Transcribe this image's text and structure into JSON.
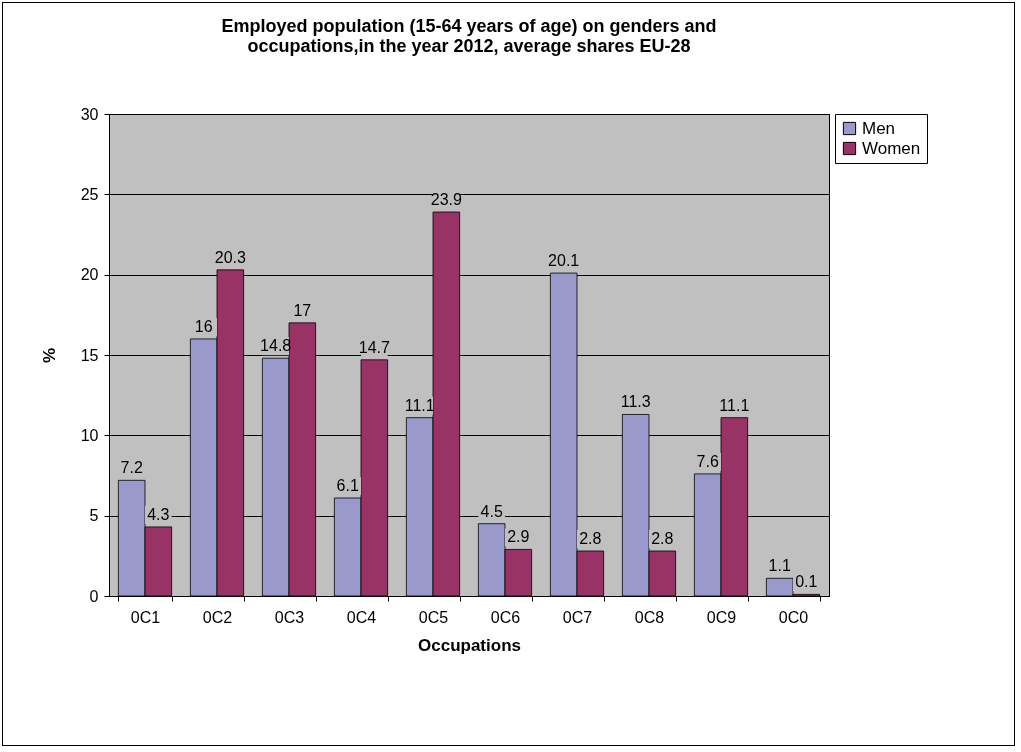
{
  "chart_data": {
    "type": "bar",
    "title": "Employed population (15-64 years of age) on genders and\noccupations,in the year 2012, average shares EU-28",
    "xlabel": "Occupations",
    "ylabel": "%",
    "categories": [
      "0C1",
      "0C2",
      "0C3",
      "0C4",
      "0C5",
      "0C6",
      "0C7",
      "0C8",
      "0C9",
      "0C0"
    ],
    "series": [
      {
        "name": "Men",
        "color": "#9999cc",
        "values": [
          7.2,
          16,
          14.8,
          6.1,
          11.1,
          4.5,
          20.1,
          11.3,
          7.6,
          1.1
        ]
      },
      {
        "name": "Women",
        "color": "#993366",
        "values": [
          4.3,
          20.3,
          17,
          14.7,
          23.9,
          2.9,
          2.8,
          2.8,
          11.1,
          0.1
        ]
      }
    ],
    "ylim": [
      0,
      30
    ],
    "yticks": [
      0,
      5,
      10,
      15,
      20,
      25,
      30
    ],
    "grid": "y",
    "legend": "right",
    "data_labels": true
  }
}
